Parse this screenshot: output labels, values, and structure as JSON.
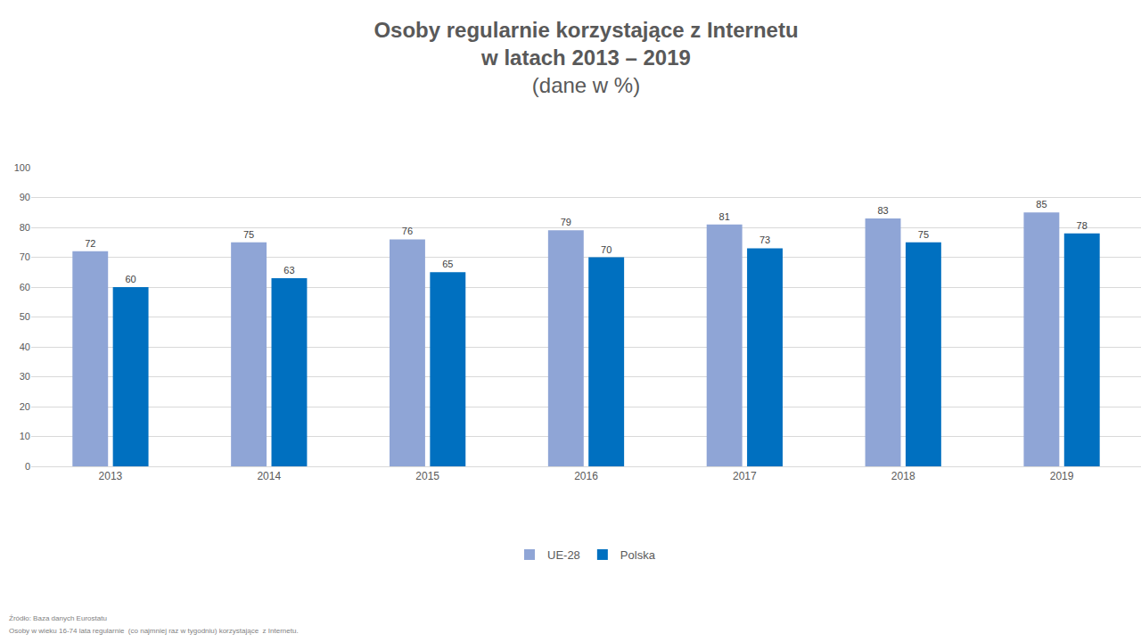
{
  "chart_data": {
    "type": "bar",
    "title": "Osoby regularnie korzystające z Internetu\nw latach 2013 – 2019",
    "subtitle": "(dane w %)",
    "categories": [
      "2013",
      "2014",
      "2015",
      "2016",
      "2017",
      "2018",
      "2019"
    ],
    "series": [
      {
        "name": "UE-28",
        "color": "#8fa5d6",
        "values": [
          72,
          75,
          76,
          79,
          81,
          83,
          85
        ]
      },
      {
        "name": "Polska",
        "color": "#0070c0",
        "values": [
          60,
          63,
          65,
          70,
          73,
          75,
          78
        ]
      }
    ],
    "ylim": [
      0,
      100
    ],
    "yticks": [
      0,
      10,
      20,
      30,
      40,
      50,
      60,
      70,
      80,
      90,
      100
    ],
    "grid": true,
    "legend": "bottom",
    "data_labels": true,
    "annotations": [
      "Źródło: Baza danych Eurostatu",
      "Osoby w wieku 16-74 lata regularnie  (co najmniej raz w tygodniu) korzystające  z Internetu."
    ]
  }
}
